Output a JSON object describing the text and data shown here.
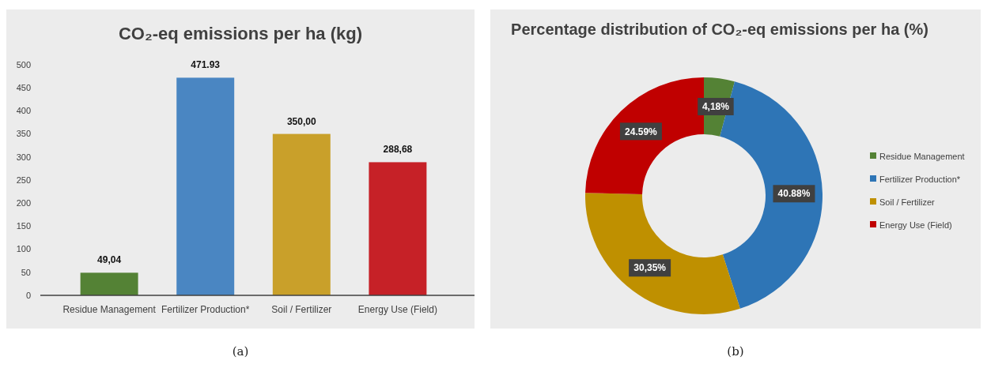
{
  "chart_data": [
    {
      "type": "bar",
      "title": "CO₂-eq emissions per ha (kg)",
      "categories": [
        "Residue Management",
        "Fertilizer Production*",
        "Soil / Fertilizer",
        "Energy Use (Field)"
      ],
      "values": [
        49.04,
        471.93,
        350.0,
        288.68
      ],
      "colors": [
        "#548235",
        "#4a86c2",
        "#c9a02a",
        "#c62127"
      ],
      "value_labels": [
        "49,04",
        "471.93",
        "350,00",
        "288,68"
      ],
      "ylim": [
        0,
        500
      ],
      "yticks": [
        0,
        50,
        100,
        150,
        200,
        250,
        300,
        350,
        400,
        450,
        500
      ],
      "grid": false,
      "annotations": [
        "(a)"
      ]
    },
    {
      "type": "donut",
      "title": "Percentage distribution of CO₂-eq emissions per ha (%)",
      "categories": [
        "Residue Management",
        "Fertilizer Production*",
        "Soil / Fertilizer",
        "Energy Use (Field)"
      ],
      "values": [
        4.18,
        40.88,
        30.35,
        24.59
      ],
      "colors": [
        "#548235",
        "#2e75b6",
        "#bf9000",
        "#c00000"
      ],
      "value_labels": [
        "4,18%",
        "40.88%",
        "30,35%",
        "24.59%"
      ],
      "legend": "right",
      "annotations": [
        "(b)"
      ]
    }
  ]
}
